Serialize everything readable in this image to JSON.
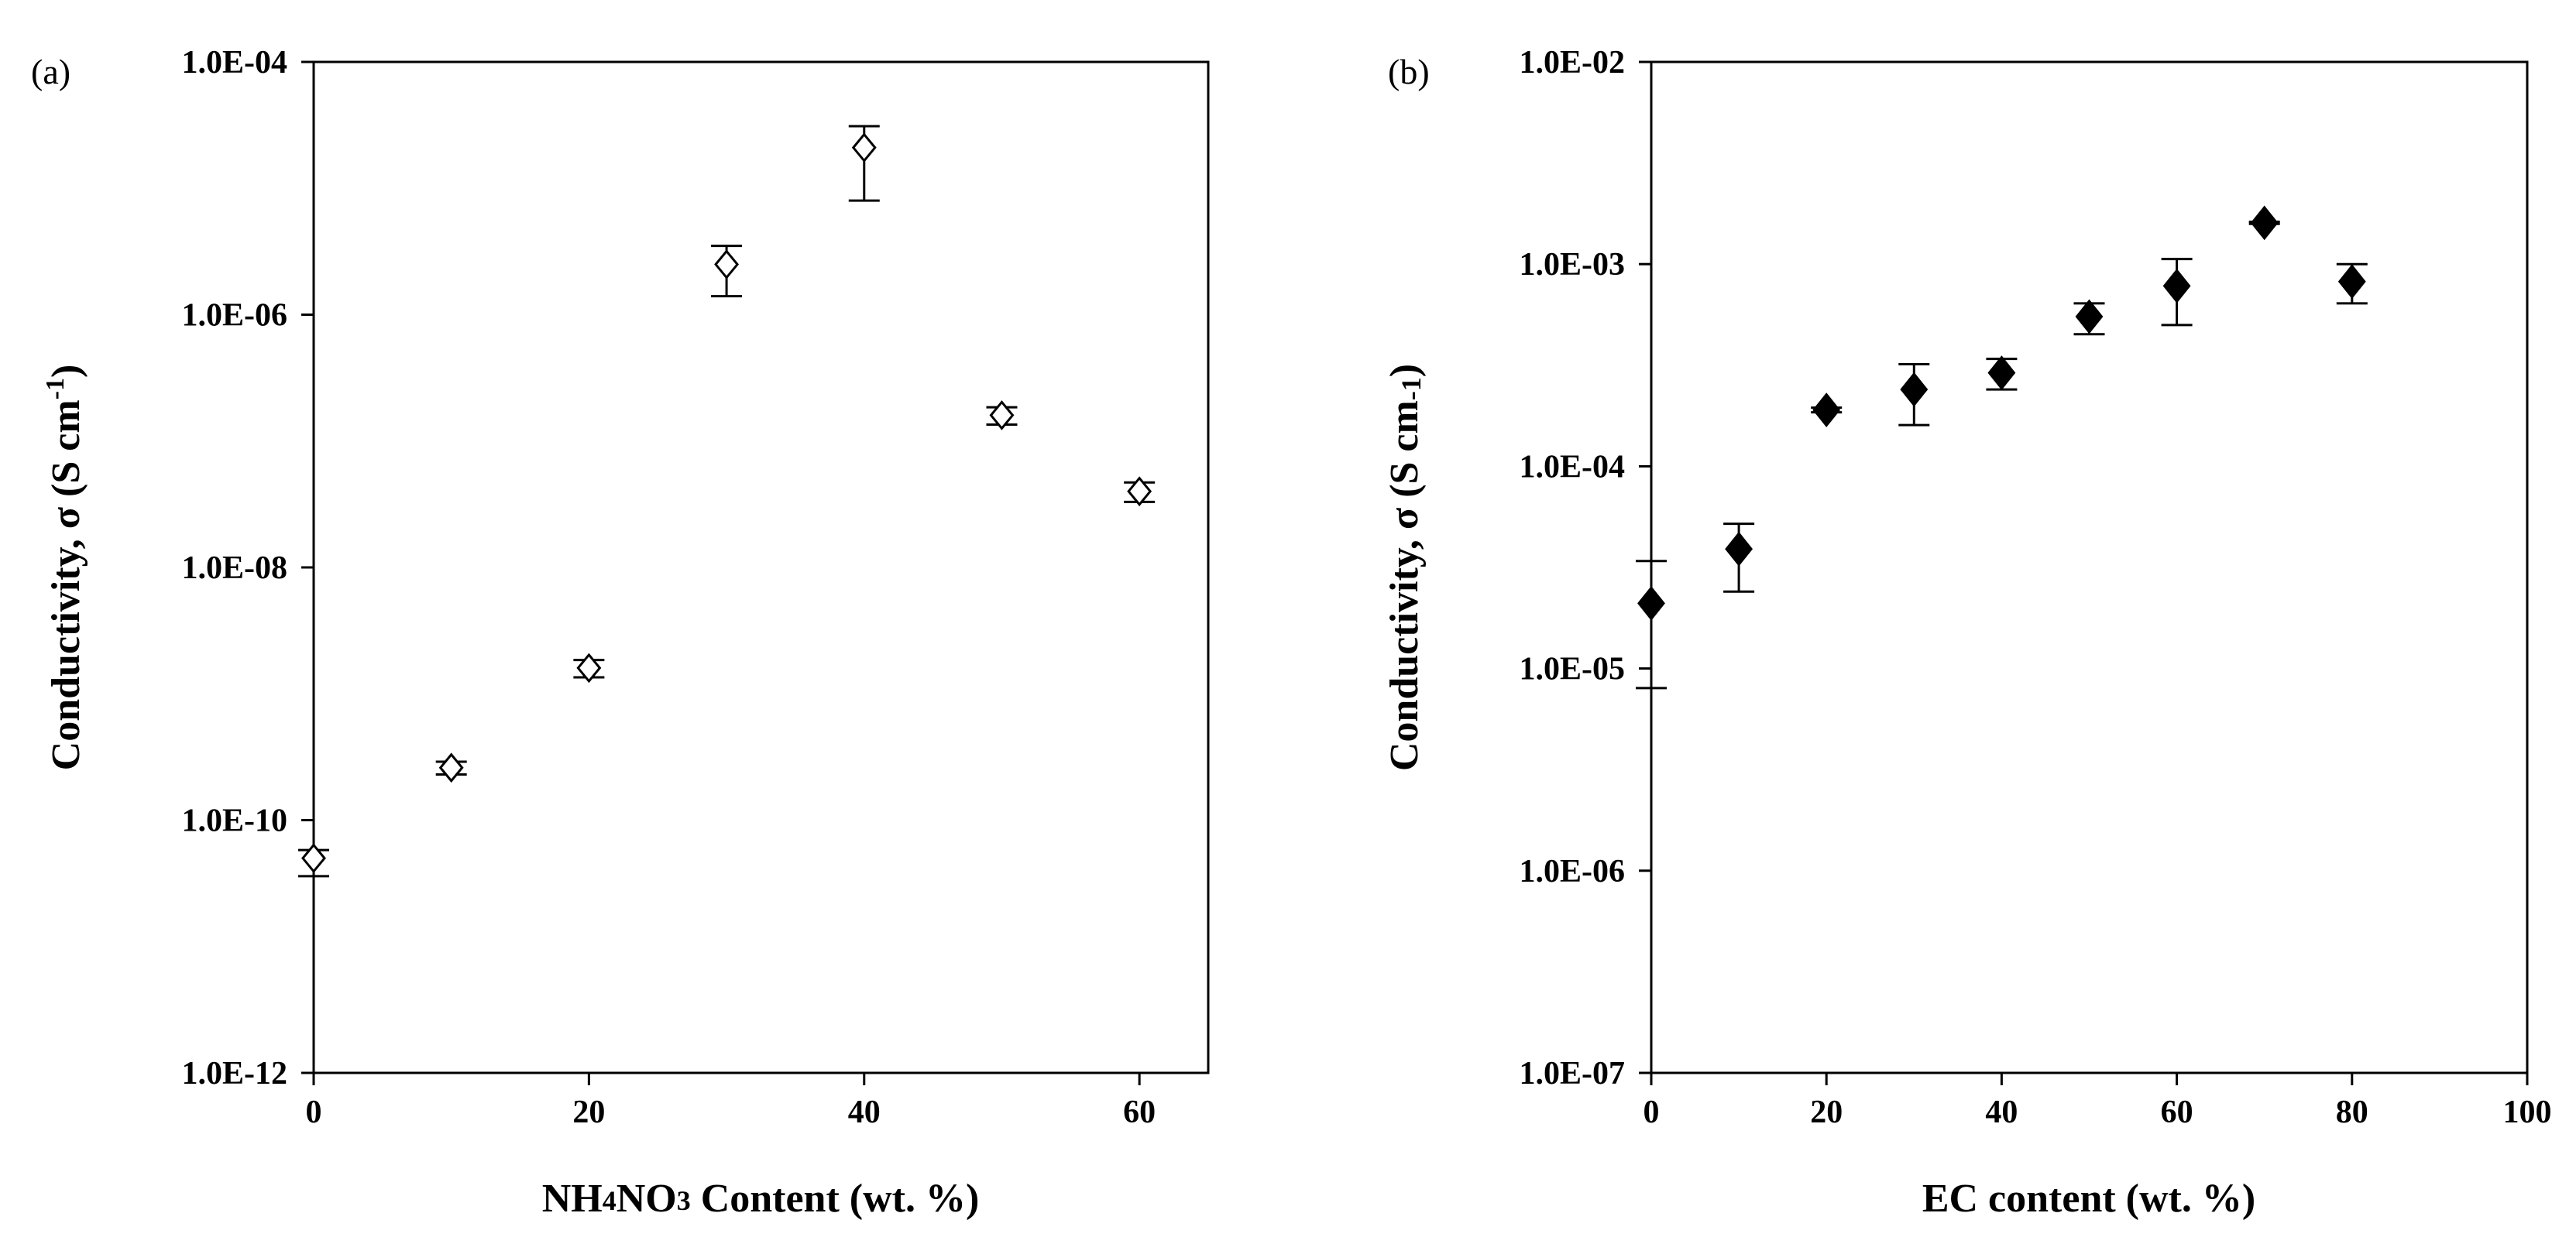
{
  "chart_data": [
    {
      "panel_label": "(a)",
      "type": "scatter",
      "marker": "open-diamond",
      "xlabel": "NH4NO3 Content  (wt. %)",
      "xlabel_parts": [
        "NH",
        "4",
        "NO",
        "3",
        " Content  (wt. %)"
      ],
      "ylabel": "Conductivity, σ (S cm-1)",
      "ylabel_parts": [
        "Conductivity, σ (S cm",
        "-1",
        ")"
      ],
      "yscale": "log",
      "xlim": [
        0,
        65
      ],
      "ylim": [
        1e-12,
        0.0001
      ],
      "xticks": [
        0,
        20,
        40,
        60
      ],
      "xtick_labels": [
        "0",
        "20",
        "40",
        "60"
      ],
      "yticks": [
        1e-12,
        1e-10,
        1e-08,
        1e-06,
        0.0001
      ],
      "ytick_labels": [
        "1.0E-12",
        "1.0E-10",
        "1.0E-08",
        "1.0E-06",
        "1.0E-04"
      ],
      "points": [
        {
          "x": 0,
          "y": 5e-11,
          "y_err_low": 3.6e-11,
          "y_err_high": 5.8e-11
        },
        {
          "x": 10,
          "y": 2.6e-10,
          "y_err_low": 2.3e-10,
          "y_err_high": 2.9e-10
        },
        {
          "x": 20,
          "y": 1.6e-09,
          "y_err_low": 1.35e-09,
          "y_err_high": 1.85e-09
        },
        {
          "x": 30,
          "y": 2.5e-06,
          "y_err_low": 1.4e-06,
          "y_err_high": 3.5e-06
        },
        {
          "x": 40,
          "y": 2.1e-05,
          "y_err_low": 8e-06,
          "y_err_high": 3.1e-05
        },
        {
          "x": 50,
          "y": 1.6e-07,
          "y_err_low": 1.35e-07,
          "y_err_high": 1.85e-07
        },
        {
          "x": 60,
          "y": 4e-08,
          "y_err_low": 3.3e-08,
          "y_err_high": 4.7e-08
        }
      ]
    },
    {
      "panel_label": "(b)",
      "type": "scatter",
      "marker": "filled-diamond",
      "xlabel": "EC content (wt. %)",
      "ylabel": "Conductivity, σ (S cm-1)",
      "ylabel_parts": [
        "Conductivity, σ (S cm",
        "-1",
        ")"
      ],
      "yscale": "log",
      "xlim": [
        0,
        100
      ],
      "ylim": [
        1e-07,
        0.01
      ],
      "xticks": [
        0,
        20,
        40,
        60,
        80,
        100
      ],
      "xtick_labels": [
        "0",
        "20",
        "40",
        "60",
        "80",
        "100"
      ],
      "yticks": [
        1e-07,
        1e-06,
        1e-05,
        0.0001,
        0.001,
        0.01
      ],
      "ytick_labels": [
        "1.0E-07",
        "1.0E-06",
        "1.0E-05",
        "1.0E-04",
        "1.0E-03",
        "1.0E-02"
      ],
      "points": [
        {
          "x": 0,
          "y": 2.1e-05,
          "y_err_low": 8e-06,
          "y_err_high": 3.4e-05
        },
        {
          "x": 10,
          "y": 3.9e-05,
          "y_err_low": 2.4e-05,
          "y_err_high": 5.2e-05
        },
        {
          "x": 20,
          "y": 0.00019,
          "y_err_low": 0.000185,
          "y_err_high": 0.000195
        },
        {
          "x": 30,
          "y": 0.00024,
          "y_err_low": 0.00016,
          "y_err_high": 0.00032
        },
        {
          "x": 40,
          "y": 0.00029,
          "y_err_low": 0.00024,
          "y_err_high": 0.00034
        },
        {
          "x": 50,
          "y": 0.00055,
          "y_err_low": 0.00045,
          "y_err_high": 0.00064
        },
        {
          "x": 60,
          "y": 0.00078,
          "y_err_low": 0.0005,
          "y_err_high": 0.00106
        },
        {
          "x": 70,
          "y": 0.0016,
          "y_err_low": 0.00158,
          "y_err_high": 0.00162
        },
        {
          "x": 80,
          "y": 0.00082,
          "y_err_low": 0.00064,
          "y_err_high": 0.001
        }
      ]
    }
  ]
}
